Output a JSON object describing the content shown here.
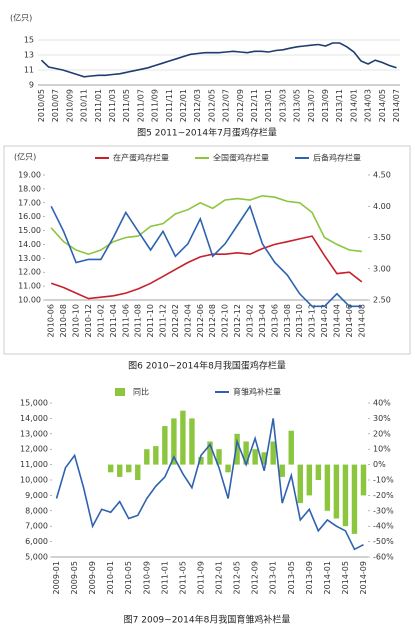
{
  "chart_data": [
    {
      "type": "line",
      "y_label": "(亿只)",
      "caption": "图5   2011~2014年7月蛋鸡存栏量",
      "grid": true,
      "categories": [
        "2010/05",
        null,
        "2010/07",
        null,
        "2010/09",
        null,
        "2010/11",
        null,
        "2011/01",
        null,
        "2011/03",
        null,
        "2011/05",
        null,
        "2011/07",
        null,
        "2011/09",
        null,
        "2011/11",
        null,
        "2012/01",
        null,
        "2012/03",
        null,
        "2012/05",
        null,
        "2012/07",
        null,
        "2012/09",
        null,
        "2012/11",
        null,
        "2013/01",
        null,
        "2013/03",
        null,
        "2013/05",
        null,
        "2013/07",
        null,
        "2013/09",
        null,
        "2013/11",
        null,
        "2014/01",
        null,
        "2014/03",
        null,
        "2014/05",
        null,
        "2014/07"
      ],
      "ylim": [
        9,
        15
      ],
      "yticks": [
        9,
        11,
        13,
        15
      ],
      "series": [
        {
          "color": "#1f3d6e",
          "values": [
            12.3,
            11.4,
            11.2,
            11.0,
            10.7,
            10.4,
            10.1,
            10.2,
            10.3,
            10.3,
            10.4,
            10.5,
            10.7,
            10.9,
            11.1,
            11.3,
            11.6,
            11.9,
            12.2,
            12.5,
            12.8,
            13.1,
            13.2,
            13.3,
            13.3,
            13.3,
            13.4,
            13.5,
            13.4,
            13.3,
            13.5,
            13.5,
            13.4,
            13.6,
            13.7,
            13.9,
            14.1,
            14.2,
            14.3,
            14.4,
            14.2,
            14.6,
            14.6,
            14.1,
            13.4,
            12.2,
            11.8,
            12.3,
            12.0,
            11.6,
            11.3
          ]
        }
      ]
    },
    {
      "type": "line",
      "y_label": "(亿只)",
      "caption": "图6   2010~2014年8月我国蛋鸡存栏量",
      "legend": "top",
      "categories": [
        "2010-06",
        "2010-08",
        "2010-10",
        "2010-12",
        "2011-02",
        "2011-04",
        "2011-06",
        "2011-08",
        "2011-10",
        "2011-12",
        "2012-02",
        "2012-04",
        "2012-06",
        "2012-08",
        "2012-10",
        "2012-12",
        "2013-02",
        "2013-04",
        "2013-06",
        "2013-08",
        "2013-10",
        "2013-12",
        "2014-02",
        "2014-04",
        "2014-06",
        "2014-08"
      ],
      "ylim": [
        10,
        19
      ],
      "yticks": [
        {
          "value": 10,
          "label": "10.00"
        },
        {
          "value": 11,
          "label": "11.00"
        },
        {
          "value": 12,
          "label": "12.00"
        },
        {
          "value": 13,
          "label": "13.00"
        },
        {
          "value": 14,
          "label": "14.00"
        },
        {
          "value": 15,
          "label": "15.00"
        },
        {
          "value": 16,
          "label": "16.00"
        },
        {
          "value": 17,
          "label": "17.00"
        },
        {
          "value": 18,
          "label": "18.00"
        },
        {
          "value": 19,
          "label": "19.00"
        }
      ],
      "y2lim": [
        2.5,
        4.5
      ],
      "y2ticks": [
        {
          "value": 2.5,
          "label": "2.50"
        },
        {
          "value": 3,
          "label": "3.00"
        },
        {
          "value": 3.5,
          "label": "3.50"
        },
        {
          "value": 4,
          "label": "4.00"
        },
        {
          "value": 4.5,
          "label": "4.50"
        }
      ],
      "series": [
        {
          "name": "在产蛋鸡存栏量",
          "color": "#c8202a",
          "values": [
            11.2,
            10.9,
            10.5,
            10.1,
            10.2,
            10.3,
            10.5,
            10.8,
            11.2,
            11.7,
            12.2,
            12.7,
            13.1,
            13.3,
            13.3,
            13.4,
            13.3,
            13.7,
            14.0,
            14.2,
            14.4,
            14.6,
            13.2,
            11.9,
            12.0,
            11.3
          ]
        },
        {
          "name": "全国蛋鸡存栏量",
          "color": "#8cc63f",
          "values": [
            15.2,
            14.2,
            13.6,
            13.3,
            13.6,
            14.2,
            14.5,
            14.6,
            15.3,
            15.5,
            16.2,
            16.5,
            17.0,
            16.6,
            17.2,
            17.3,
            17.2,
            17.5,
            17.4,
            17.1,
            17.0,
            16.3,
            14.5,
            14.0,
            13.6,
            13.5
          ]
        },
        {
          "name": "后备鸡存栏量",
          "color": "#2e62b0",
          "axis": "y2",
          "values": [
            4.0,
            3.6,
            3.1,
            3.15,
            3.15,
            3.5,
            3.9,
            3.6,
            3.3,
            3.6,
            3.2,
            3.4,
            3.8,
            3.2,
            3.4,
            3.7,
            4.0,
            3.4,
            3.1,
            2.9,
            2.6,
            2.4,
            2.4,
            2.6,
            2.4,
            2.4
          ]
        }
      ]
    },
    {
      "type": "combo",
      "caption": "图7   2009~2014年8月我国育雏鸡补栏量",
      "legend": "top",
      "categories": [
        "2009-01",
        null,
        "2009-05",
        null,
        "2009-09",
        null,
        "2010-01",
        null,
        "2010-05",
        null,
        "2010-09",
        null,
        "2011-01",
        null,
        "2011-05",
        null,
        "2011-09",
        null,
        "2012-01",
        null,
        "2012-05",
        null,
        "2012-09",
        null,
        "2013-01",
        null,
        "2013-05",
        null,
        "2013-09",
        null,
        "2014-01",
        null,
        "2014-05",
        null,
        "2014-09"
      ],
      "ylim": [
        5000,
        15000
      ],
      "yticks": [
        {
          "value": 5000,
          "label": "5,000"
        },
        {
          "value": 6000,
          "label": "6,000"
        },
        {
          "value": 7000,
          "label": "7,000"
        },
        {
          "value": 8000,
          "label": "8,000"
        },
        {
          "value": 9000,
          "label": "9,000"
        },
        {
          "value": 10000,
          "label": "10,000"
        },
        {
          "value": 11000,
          "label": "11,000"
        },
        {
          "value": 12000,
          "label": "12,000"
        },
        {
          "value": 13000,
          "label": "13,000"
        },
        {
          "value": 14000,
          "label": "14,000"
        },
        {
          "value": 15000,
          "label": "15,000"
        }
      ],
      "y2lim": [
        -60,
        40
      ],
      "y2ticks": [
        {
          "value": -60,
          "label": "-60%"
        },
        {
          "value": -50,
          "label": "-50%"
        },
        {
          "value": -40,
          "label": "-40%"
        },
        {
          "value": -30,
          "label": "-30%"
        },
        {
          "value": -20,
          "label": "-20%"
        },
        {
          "value": -10,
          "label": "-10%"
        },
        {
          "value": 0,
          "label": "0%"
        },
        {
          "value": 10,
          "label": "10%"
        },
        {
          "value": 20,
          "label": "20%"
        },
        {
          "value": 30,
          "label": "30%"
        },
        {
          "value": 40,
          "label": "40%"
        }
      ],
      "series": [
        {
          "name": "同比",
          "type": "bar",
          "axis": "y2",
          "color": "#8cc63f",
          "values": [
            null,
            null,
            null,
            null,
            null,
            null,
            -5,
            -8,
            -5,
            -10,
            10,
            12,
            25,
            30,
            35,
            30,
            5,
            15,
            10,
            -5,
            20,
            15,
            10,
            8,
            15,
            -8,
            22,
            -25,
            -20,
            -10,
            -30,
            -35,
            -40,
            -45,
            -20
          ]
        },
        {
          "name": "育雏鸡补栏量",
          "type": "line",
          "color": "#2e62b0",
          "values": [
            8800,
            10800,
            11600,
            9500,
            7000,
            8100,
            7900,
            8600,
            7500,
            7700,
            8800,
            9600,
            10200,
            11500,
            10400,
            9500,
            11600,
            12300,
            10800,
            8800,
            12500,
            11000,
            12700,
            10600,
            14000,
            8500,
            10300,
            7400,
            8100,
            6700,
            7400,
            7000,
            6700,
            5500,
            5800
          ]
        }
      ]
    }
  ]
}
